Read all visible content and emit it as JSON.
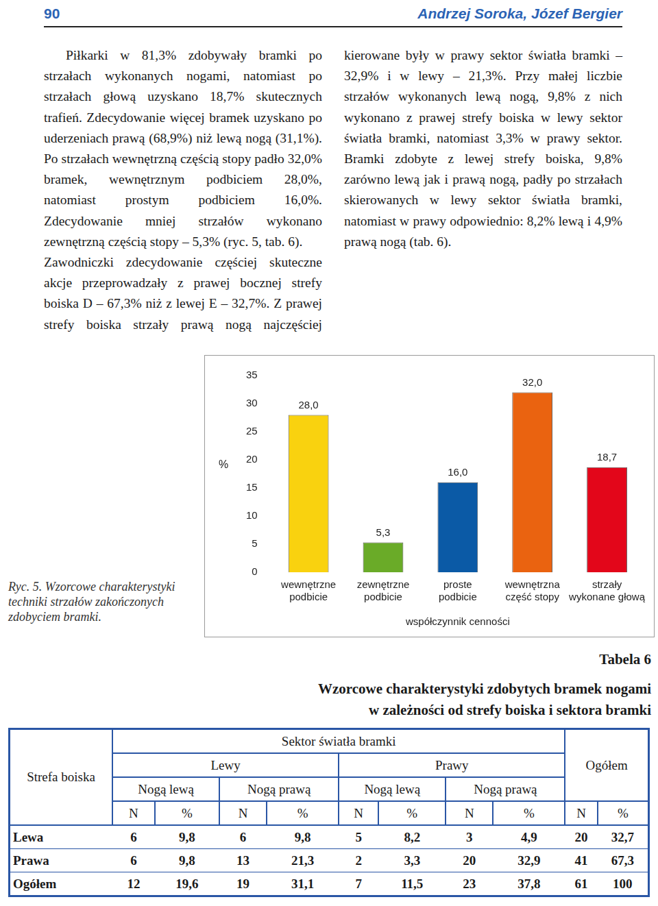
{
  "header": {
    "page": "90",
    "authors": "Andrzej Soroka, Józef Bergier"
  },
  "text": {
    "paragraphs": [
      "Piłkarki w 81,3% zdobywały bramki po strzałach wykonanych nogami, natomiast po strzałach głową uzyskano 18,7% skutecznych trafień. Zdecydowanie więcej bramek uzyskano po uderzeniach prawą (68,9%) niż lewą nogą (31,1%). Po strzałach wewnętrzną częścią stopy padło 32,0% bramek, wewnętrznym podbiciem 28,0%, natomiast prostym podbiciem 16,0%. Zdecydowanie mniej strzałów wykonano zewnętrzną częścią stopy – 5,3% (ryc. 5, tab. 6).",
      "Zawodniczki zdecydowanie częściej skuteczne akcje przeprowadzały z prawej bocznej strefy boiska D – 67,3% niż z lewej E – 32,7%. Z prawej strefy boiska strzały prawą nogą najczęściej kierowane były w prawy sektor światła bramki – 32,9% i w lewy – 21,3%. Przy małej liczbie strzałów wykonanych lewą nogą, 9,8% z nich wykonano z prawej strefy boiska w lewy sektor światła bramki, natomiast 3,3% w prawy sektor. Bramki zdobyte z lewej strefy boiska, 9,8% zarówno lewą jak i prawą nogą, padły po strzałach skierowanych w lewy sektor światła bramki, natomiast w prawy odpowiednio: 8,2% lewą i 4,9% prawą nogą (tab. 6)."
    ]
  },
  "figure": {
    "caption": "Ryc. 5. Wzorcowe charakterystyki techniki strzałów zakończonych zdobyciem bramki."
  },
  "chart_data": {
    "type": "bar",
    "x_label": "współczynnik cenności",
    "y_label": "%",
    "categories": [
      "wewnętrzne\npodbicie",
      "zewnętrzne\npodbicie",
      "proste\npodbicie",
      "wewnętrzna\nczęść stopy",
      "strzały\nwykonane głową"
    ],
    "values": [
      28.0,
      5.3,
      16.0,
      32.0,
      18.7
    ],
    "value_labels": [
      "28,0",
      "5,3",
      "16,0",
      "32,0",
      "18,7"
    ],
    "colors": [
      "#f9d20f",
      "#6aab28",
      "#0b5aa6",
      "#ea6310",
      "#e3061a"
    ],
    "ylim": [
      0,
      35
    ],
    "yticks": [
      0,
      5,
      10,
      15,
      20,
      25,
      30,
      35
    ],
    "grid": false,
    "data_labels": true
  },
  "table": {
    "number": "Tabela 6",
    "title": [
      "Wzorcowe charakterystyki zdobytych bramek nogami",
      "w zależności od strefy boiska i sektora bramki"
    ],
    "header": {
      "zone": "Strefa boiska",
      "sector": "Sektor światła bramki",
      "total": "Ogółem",
      "sides": [
        "Lewy",
        "Prawy"
      ],
      "feet": [
        "Nogą lewą",
        "Nogą prawą",
        "Nogą lewą",
        "Nogą prawą"
      ],
      "units": [
        "N",
        "%",
        "N",
        "%",
        "N",
        "%",
        "N",
        "%",
        "N",
        "%"
      ]
    },
    "rows": [
      [
        "Lewa",
        "6",
        "9,8",
        "6",
        "9,8",
        "5",
        "8,2",
        "3",
        "4,9",
        "20",
        "32,7"
      ],
      [
        "Prawa",
        "6",
        "9,8",
        "13",
        "21,3",
        "2",
        "3,3",
        "20",
        "32,9",
        "41",
        "67,3"
      ],
      [
        "Ogółem",
        "12",
        "19,6",
        "19",
        "31,1",
        "7",
        "11,5",
        "23",
        "37,8",
        "61",
        "100"
      ]
    ]
  }
}
